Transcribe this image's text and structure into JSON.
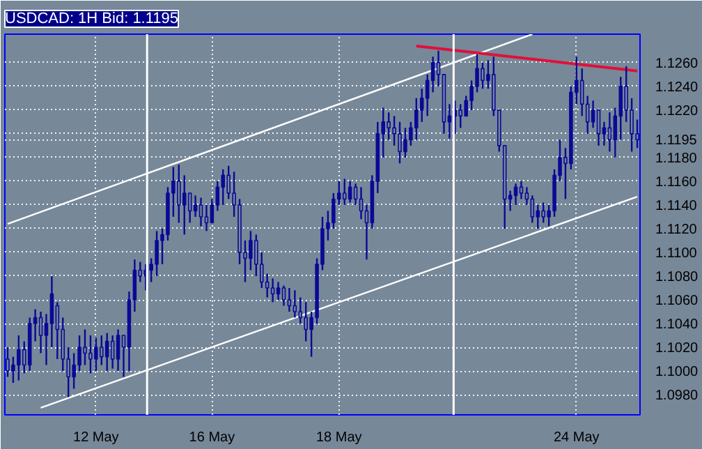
{
  "chart_data": {
    "type": "candlestick",
    "title": "USDCAD: 1H Bid: 1.1195",
    "color": "#0a0a96",
    "categories": [
      null,
      null,
      null,
      null,
      null,
      null,
      null,
      null,
      null,
      null,
      null,
      null,
      null,
      null,
      null,
      null,
      "12 May",
      null,
      null,
      null,
      null,
      null,
      null,
      null,
      null,
      null,
      null,
      null,
      null,
      null,
      null,
      null,
      null,
      null,
      null,
      null,
      null,
      "16 May",
      null,
      null,
      null,
      null,
      null,
      null,
      null,
      null,
      null,
      null,
      null,
      null,
      null,
      null,
      null,
      null,
      null,
      null,
      null,
      null,
      null,
      null,
      "18 May",
      null,
      null,
      null,
      null,
      null,
      null,
      null,
      null,
      null,
      null,
      null,
      null,
      null,
      null,
      null,
      null,
      null,
      null,
      null,
      null,
      null,
      null,
      null,
      null,
      null,
      null,
      null,
      null,
      null,
      null,
      null,
      null,
      null,
      null,
      null,
      null,
      null,
      null,
      null,
      null,
      null,
      null,
      "24 May",
      null,
      null,
      null,
      null,
      null,
      null,
      null,
      null,
      null,
      null,
      null
    ],
    "ohlc": [
      [
        1.101,
        1.102,
        1.0995,
        1.1
      ],
      [
        1.1,
        1.1012,
        1.099,
        1.1005
      ],
      [
        1.1005,
        1.103,
        1.0992,
        1.1018
      ],
      [
        1.1018,
        1.1025,
        1.0998,
        1.1005
      ],
      [
        1.1005,
        1.1045,
        1.1,
        1.104
      ],
      [
        1.104,
        1.1052,
        1.1025,
        1.1045
      ],
      [
        1.1045,
        1.105,
        1.1015,
        1.103
      ],
      [
        1.103,
        1.1048,
        1.1005,
        1.104
      ],
      [
        1.104,
        1.108,
        1.102,
        1.1065
      ],
      [
        1.1055,
        1.1058,
        1.101,
        1.1035
      ],
      [
        1.1035,
        1.1045,
        1.1,
        1.101
      ],
      [
        1.101,
        1.102,
        1.0978,
        1.0995
      ],
      [
        1.0995,
        1.1015,
        1.0985,
        1.1005
      ],
      [
        1.1005,
        1.103,
        1.1,
        1.102
      ],
      [
        1.102,
        1.1035,
        1.1005,
        1.1015
      ],
      [
        1.1015,
        1.103,
        1.0998,
        1.101
      ],
      [
        1.101,
        1.1028,
        1.1,
        1.102
      ],
      [
        1.102,
        1.103,
        1.1005,
        1.1012
      ],
      [
        1.1012,
        1.1032,
        1.1,
        1.1025
      ],
      [
        1.1025,
        1.103,
        1.1002,
        1.101
      ],
      [
        1.101,
        1.1035,
        1.1,
        1.103
      ],
      [
        1.103,
        1.103,
        1.0995,
        1.102
      ],
      [
        1.102,
        1.1067,
        1.1,
        1.106
      ],
      [
        1.106,
        1.1094,
        1.105,
        1.1085
      ],
      [
        1.1085,
        1.1092,
        1.1075,
        1.108
      ],
      [
        1.108,
        1.109,
        1.1068,
        1.1085
      ],
      [
        1.1085,
        1.1095,
        1.1075,
        1.109
      ],
      [
        1.109,
        1.1118,
        1.108,
        1.111
      ],
      [
        1.111,
        1.112,
        1.109,
        1.1115
      ],
      [
        1.1115,
        1.1155,
        1.111,
        1.115
      ],
      [
        1.115,
        1.1172,
        1.113,
        1.116
      ],
      [
        1.116,
        1.1174,
        1.1125,
        1.114
      ],
      [
        1.114,
        1.1165,
        1.1115,
        1.115
      ],
      [
        1.115,
        1.115,
        1.1125,
        1.1135
      ],
      [
        1.1135,
        1.1148,
        1.113,
        1.114
      ],
      [
        1.114,
        1.1146,
        1.1122,
        1.113
      ],
      [
        1.113,
        1.114,
        1.1118,
        1.1125
      ],
      [
        1.1125,
        1.1145,
        1.1125,
        1.114
      ],
      [
        1.114,
        1.116,
        1.1135,
        1.1155
      ],
      [
        1.1155,
        1.117,
        1.114,
        1.1165
      ],
      [
        1.1165,
        1.1173,
        1.1145,
        1.115
      ],
      [
        1.115,
        1.1168,
        1.113,
        1.114
      ],
      [
        1.114,
        1.1145,
        1.109,
        1.11
      ],
      [
        1.11,
        1.111,
        1.1075,
        1.1095
      ],
      [
        1.1095,
        1.1118,
        1.1085,
        1.111
      ],
      [
        1.111,
        1.1115,
        1.108,
        1.109
      ],
      [
        1.109,
        1.11,
        1.107,
        1.1075
      ],
      [
        1.1075,
        1.1082,
        1.1062,
        1.107
      ],
      [
        1.107,
        1.1078,
        1.1058,
        1.1065
      ],
      [
        1.1065,
        1.1075,
        1.106,
        1.107
      ],
      [
        1.107,
        1.1072,
        1.1055,
        1.106
      ],
      [
        1.106,
        1.107,
        1.105,
        1.1055
      ],
      [
        1.1055,
        1.1068,
        1.1045,
        1.105
      ],
      [
        1.105,
        1.1062,
        1.104,
        1.1045
      ],
      [
        1.1045,
        1.1058,
        1.1025,
        1.1035
      ],
      [
        1.1035,
        1.105,
        1.1012,
        1.1045
      ],
      [
        1.1045,
        1.1095,
        1.104,
        1.109
      ],
      [
        1.109,
        1.113,
        1.1085,
        1.112
      ],
      [
        1.112,
        1.1135,
        1.111,
        1.1125
      ],
      [
        1.1125,
        1.115,
        1.112,
        1.1145
      ],
      [
        1.1145,
        1.116,
        1.114,
        1.115
      ],
      [
        1.115,
        1.1162,
        1.114,
        1.1145
      ],
      [
        1.1145,
        1.116,
        1.1142,
        1.1155
      ],
      [
        1.1155,
        1.1158,
        1.114,
        1.1145
      ],
      [
        1.1145,
        1.1155,
        1.1128,
        1.1135
      ],
      [
        1.1135,
        1.114,
        1.1094,
        1.1125
      ],
      [
        1.1125,
        1.1165,
        1.112,
        1.116
      ],
      [
        1.116,
        1.121,
        1.115,
        1.12
      ],
      [
        1.12,
        1.1222,
        1.118,
        1.121
      ],
      [
        1.121,
        1.1218,
        1.1195,
        1.1205
      ],
      [
        1.1205,
        1.1215,
        1.119,
        1.12
      ],
      [
        1.12,
        1.121,
        1.1175,
        1.1185
      ],
      [
        1.1185,
        1.1205,
        1.118,
        1.1195
      ],
      [
        1.1195,
        1.121,
        1.119,
        1.1205
      ],
      [
        1.1205,
        1.123,
        1.1195,
        1.122
      ],
      [
        1.122,
        1.1238,
        1.121,
        1.123
      ],
      [
        1.123,
        1.125,
        1.1215,
        1.1245
      ],
      [
        1.1245,
        1.1265,
        1.1235,
        1.126
      ],
      [
        1.126,
        1.127,
        1.124,
        1.125
      ],
      [
        1.125,
        1.125,
        1.12,
        1.121
      ],
      [
        1.121,
        1.1225,
        1.1196,
        1.1215
      ],
      [
        1.1215,
        1.1228,
        1.12,
        1.122
      ],
      [
        1.122,
        1.1225,
        1.1205,
        1.1215
      ],
      [
        1.1215,
        1.1232,
        1.1215,
        1.1228
      ],
      [
        1.1228,
        1.1245,
        1.122,
        1.124
      ],
      [
        1.124,
        1.1267,
        1.1235,
        1.1255
      ],
      [
        1.1255,
        1.126,
        1.1238,
        1.1245
      ],
      [
        1.1245,
        1.1262,
        1.1238,
        1.125
      ],
      [
        1.125,
        1.1265,
        1.1215,
        1.122
      ],
      [
        1.122,
        1.122,
        1.1185,
        1.119
      ],
      [
        1.119,
        1.119,
        1.112,
        1.1145
      ],
      [
        1.1145,
        1.1152,
        1.1135,
        1.1148
      ],
      [
        1.1148,
        1.1158,
        1.114,
        1.1155
      ],
      [
        1.1155,
        1.116,
        1.1145,
        1.115
      ],
      [
        1.115,
        1.1155,
        1.114,
        1.1145
      ],
      [
        1.1145,
        1.1148,
        1.1125,
        1.113
      ],
      [
        1.113,
        1.114,
        1.112,
        1.1135
      ],
      [
        1.1135,
        1.1142,
        1.1125,
        1.113
      ],
      [
        1.113,
        1.114,
        1.1122,
        1.1135
      ],
      [
        1.1135,
        1.117,
        1.113,
        1.1165
      ],
      [
        1.1165,
        1.1195,
        1.116,
        1.118
      ],
      [
        1.118,
        1.1188,
        1.1145,
        1.1175
      ],
      [
        1.1175,
        1.124,
        1.117,
        1.1235
      ],
      [
        1.1235,
        1.1265,
        1.1225,
        1.1245
      ],
      [
        1.1245,
        1.1255,
        1.1215,
        1.1225
      ],
      [
        1.1225,
        1.1232,
        1.12,
        1.121
      ],
      [
        1.121,
        1.1228,
        1.1205,
        1.122
      ],
      [
        1.122,
        1.122,
        1.119,
        1.12
      ],
      [
        1.12,
        1.121,
        1.119,
        1.1205
      ],
      [
        1.1205,
        1.1218,
        1.1185,
        1.1195
      ],
      [
        1.1195,
        1.1222,
        1.118,
        1.1215
      ],
      [
        1.1215,
        1.1248,
        1.1195,
        1.124
      ],
      [
        1.124,
        1.1257,
        1.121,
        1.122
      ],
      [
        1.122,
        1.123,
        1.1185,
        1.12
      ],
      [
        1.12,
        1.1212,
        1.1188,
        1.1195
      ]
    ],
    "series": [
      {
        "type": "line",
        "color": "#ffffff",
        "values": [
          1.1124,
          null,
          null,
          null,
          null,
          null,
          null,
          null,
          null,
          null,
          null,
          null,
          null,
          null,
          null,
          null,
          null,
          null,
          null,
          null,
          null,
          null,
          null,
          null,
          null,
          null,
          null,
          null,
          null,
          null,
          null,
          null,
          null,
          null,
          null,
          null,
          null,
          null,
          null,
          null,
          null,
          null,
          null,
          null,
          null,
          null,
          null,
          null,
          null,
          null,
          null,
          null,
          null,
          null,
          null,
          null,
          null,
          null,
          null,
          null,
          null,
          null,
          null,
          null,
          null,
          null,
          null,
          null,
          null,
          null,
          null,
          null,
          null,
          null,
          null,
          null,
          null,
          null,
          null,
          null,
          null,
          null,
          null,
          null,
          null,
          null,
          null,
          null,
          null,
          null,
          null,
          null,
          null,
          null,
          null,
          1.1284,
          null,
          null,
          null,
          null,
          null,
          null,
          null,
          null,
          null,
          null,
          null,
          null,
          null,
          null,
          null,
          null,
          null,
          null,
          null
        ]
      },
      {
        "type": "line",
        "color": "#ffffff",
        "values": [
          null,
          null,
          null,
          null,
          null,
          null,
          1.0969,
          null,
          null,
          null,
          null,
          null,
          null,
          null,
          null,
          null,
          null,
          null,
          null,
          null,
          null,
          null,
          null,
          null,
          null,
          null,
          null,
          null,
          null,
          null,
          null,
          null,
          null,
          null,
          null,
          null,
          null,
          null,
          null,
          null,
          null,
          null,
          null,
          null,
          null,
          null,
          null,
          null,
          null,
          null,
          null,
          null,
          null,
          null,
          null,
          null,
          null,
          null,
          null,
          null,
          null,
          null,
          null,
          null,
          null,
          null,
          null,
          null,
          null,
          null,
          null,
          null,
          null,
          null,
          null,
          null,
          null,
          null,
          null,
          null,
          null,
          null,
          null,
          null,
          null,
          null,
          null,
          null,
          null,
          null,
          null,
          null,
          null,
          null,
          null,
          null,
          null,
          null,
          null,
          null,
          null,
          null,
          null,
          null,
          null,
          null,
          null,
          null,
          null,
          null,
          null,
          null,
          null,
          null,
          1.1147
        ]
      },
      {
        "type": "line",
        "color": "#e0103a",
        "values": [
          null,
          null,
          null,
          null,
          null,
          null,
          null,
          null,
          null,
          null,
          null,
          null,
          null,
          null,
          null,
          null,
          null,
          null,
          null,
          null,
          null,
          null,
          null,
          null,
          null,
          null,
          null,
          null,
          null,
          null,
          null,
          null,
          null,
          null,
          null,
          null,
          null,
          null,
          null,
          null,
          null,
          null,
          null,
          null,
          null,
          null,
          null,
          null,
          null,
          null,
          null,
          null,
          null,
          null,
          null,
          null,
          null,
          null,
          null,
          null,
          null,
          null,
          null,
          null,
          null,
          null,
          null,
          null,
          null,
          null,
          null,
          null,
          null,
          null,
          1.1274,
          null,
          null,
          null,
          null,
          null,
          null,
          null,
          null,
          null,
          null,
          null,
          null,
          null,
          null,
          null,
          null,
          null,
          null,
          null,
          null,
          null,
          null,
          null,
          null,
          null,
          null,
          null,
          null,
          null,
          null,
          null,
          null,
          null,
          null,
          null,
          null,
          null,
          null,
          null,
          1.1253
        ]
      }
    ],
    "ylim": [
      1.0963,
      1.1284
    ],
    "yticks": [
      {
        "value": 1.098,
        "label": "1.0980"
      },
      {
        "value": 1.1,
        "label": "1.1000"
      },
      {
        "value": 1.102,
        "label": "1.1020"
      },
      {
        "value": 1.104,
        "label": "1.1040"
      },
      {
        "value": 1.106,
        "label": "1.1060"
      },
      {
        "value": 1.108,
        "label": "1.1080"
      },
      {
        "value": 1.11,
        "label": "1.1100"
      },
      {
        "value": 1.112,
        "label": "1.1120"
      },
      {
        "value": 1.114,
        "label": "1.1140"
      },
      {
        "value": 1.116,
        "label": "1.1160"
      },
      {
        "value": 1.118,
        "label": "1.1180"
      },
      {
        "value": 1.1195,
        "label": "1.1195"
      },
      {
        "value": 1.12,
        "label": null
      },
      {
        "value": 1.122,
        "label": "1.1220"
      },
      {
        "value": 1.124,
        "label": "1.1240"
      },
      {
        "value": 1.126,
        "label": "1.1260"
      }
    ],
    "grid": true,
    "line_style": "solid"
  }
}
